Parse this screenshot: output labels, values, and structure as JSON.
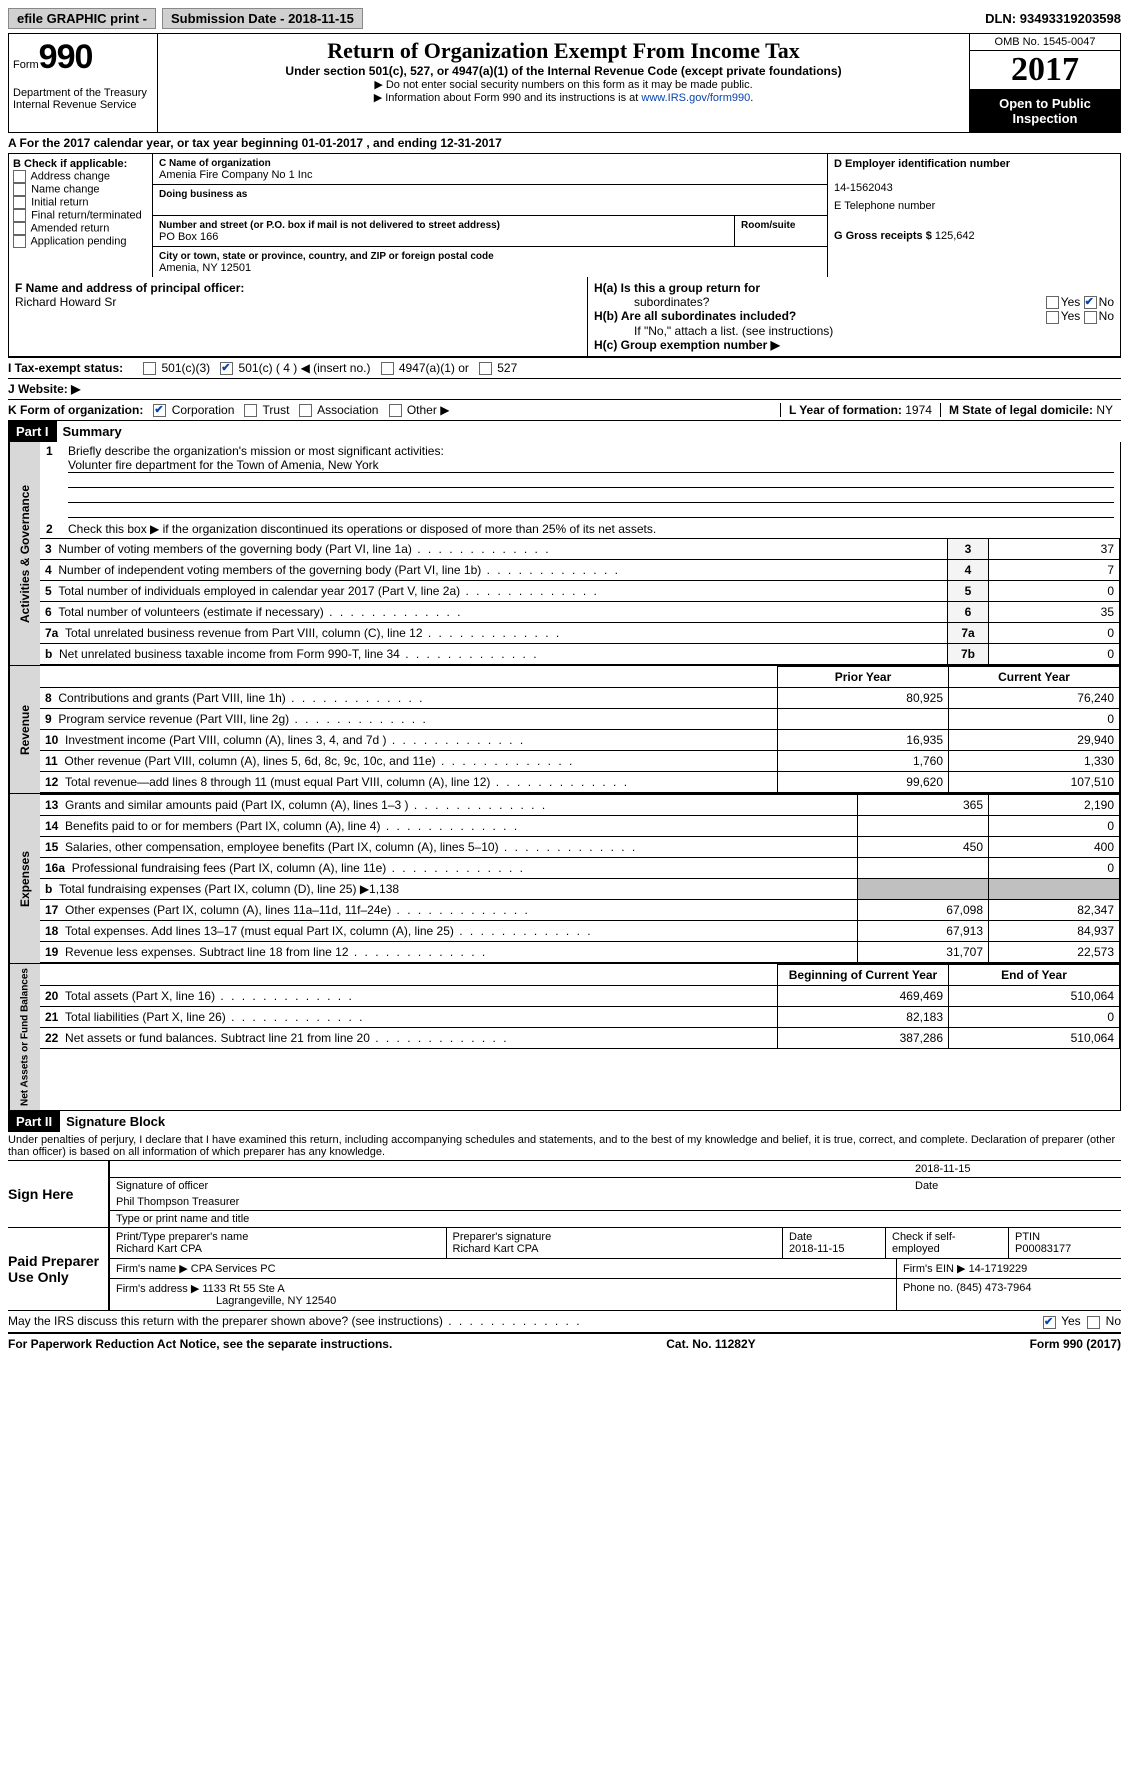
{
  "topbar": {
    "efile": "efile GRAPHIC print -",
    "subdate_lbl": "Submission Date -",
    "subdate": "2018-11-15",
    "dln_lbl": "DLN:",
    "dln": "93493319203598"
  },
  "header": {
    "form_lbl": "Form",
    "form_num": "990",
    "dept1": "Department of the Treasury",
    "dept2": "Internal Revenue Service",
    "title": "Return of Organization Exempt From Income Tax",
    "sub": "Under section 501(c), 527, or 4947(a)(1) of the Internal Revenue Code (except private foundations)",
    "note1": "▶ Do not enter social security numbers on this form as it may be made public.",
    "note2": "▶ Information about Form 990 and its instructions is at ",
    "link": "www.IRS.gov/form990",
    "omb": "OMB No. 1545-0047",
    "year": "2017",
    "open": "Open to Public Inspection"
  },
  "A": {
    "text": "A  For the 2017 calendar year, or tax year beginning 01-01-2017   , and ending 12-31-2017"
  },
  "B": {
    "lbl": "B Check if applicable:",
    "opts": [
      "Address change",
      "Name change",
      "Initial return",
      "Final return/terminated",
      "Amended return",
      "Application pending"
    ]
  },
  "C": {
    "name_lbl": "C Name of organization",
    "name": "Amenia Fire Company No 1 Inc",
    "dba_lbl": "Doing business as",
    "dba": "",
    "addr_lbl": "Number and street (or P.O. box if mail is not delivered to street address)",
    "room_lbl": "Room/suite",
    "addr": "PO Box 166",
    "city_lbl": "City or town, state or province, country, and ZIP or foreign postal code",
    "city": "Amenia, NY  12501"
  },
  "D": {
    "lbl": "D Employer identification number",
    "val": "14-1562043"
  },
  "E": {
    "lbl": "E Telephone number",
    "val": ""
  },
  "G": {
    "lbl": "G Gross receipts $",
    "val": "125,642"
  },
  "F": {
    "lbl": "F Name and address of principal officer:",
    "val": "Richard Howard Sr"
  },
  "H": {
    "a_lbl": "H(a)  Is this a group return for",
    "a_lbl2": "subordinates?",
    "a_yes": "Yes",
    "a_no": "No",
    "b_lbl": "H(b)  Are all subordinates included?",
    "b_note": "If \"No,\" attach a list. (see instructions)",
    "c_lbl": "H(c)  Group exemption number ▶"
  },
  "I": {
    "lbl": "I  Tax-exempt status:",
    "opts": [
      "501(c)(3)",
      "501(c) ( 4 ) ◀ (insert no.)",
      "4947(a)(1) or",
      "527"
    ]
  },
  "J": {
    "lbl": "J  Website: ▶"
  },
  "K": {
    "lbl": "K Form of organization:",
    "opts": [
      "Corporation",
      "Trust",
      "Association",
      "Other ▶"
    ]
  },
  "L": {
    "lbl": "L Year of formation:",
    "val": "1974"
  },
  "M": {
    "lbl": "M State of legal domicile:",
    "val": "NY"
  },
  "part1": {
    "hdr": "Part I",
    "title": "Summary",
    "l1": "Briefly describe the organization's mission or most significant activities:",
    "l1v": "Volunter fire department for the Town of Amenia, New York",
    "l2": "Check this box ▶        if the organization discontinued its operations or disposed of more than 25% of its net assets.",
    "rows_gov": [
      {
        "n": "3",
        "t": "Number of voting members of the governing body (Part VI, line 1a)",
        "r": "3",
        "v": "37"
      },
      {
        "n": "4",
        "t": "Number of independent voting members of the governing body (Part VI, line 1b)",
        "r": "4",
        "v": "7"
      },
      {
        "n": "5",
        "t": "Total number of individuals employed in calendar year 2017 (Part V, line 2a)",
        "r": "5",
        "v": "0"
      },
      {
        "n": "6",
        "t": "Total number of volunteers (estimate if necessary)",
        "r": "6",
        "v": "35"
      },
      {
        "n": "7a",
        "t": "Total unrelated business revenue from Part VIII, column (C), line 12",
        "r": "7a",
        "v": "0"
      },
      {
        "n": "b",
        "t": "Net unrelated business taxable income from Form 990-T, line 34",
        "r": "7b",
        "v": "0"
      }
    ],
    "col_prior": "Prior Year",
    "col_curr": "Current Year",
    "rows_rev": [
      {
        "n": "8",
        "t": "Contributions and grants (Part VIII, line 1h)",
        "p": "80,925",
        "c": "76,240"
      },
      {
        "n": "9",
        "t": "Program service revenue (Part VIII, line 2g)",
        "p": "",
        "c": "0"
      },
      {
        "n": "10",
        "t": "Investment income (Part VIII, column (A), lines 3, 4, and 7d )",
        "p": "16,935",
        "c": "29,940"
      },
      {
        "n": "11",
        "t": "Other revenue (Part VIII, column (A), lines 5, 6d, 8c, 9c, 10c, and 11e)",
        "p": "1,760",
        "c": "1,330"
      },
      {
        "n": "12",
        "t": "Total revenue—add lines 8 through 11 (must equal Part VIII, column (A), line 12)",
        "p": "99,620",
        "c": "107,510"
      }
    ],
    "rows_exp": [
      {
        "n": "13",
        "t": "Grants and similar amounts paid (Part IX, column (A), lines 1–3 )",
        "p": "365",
        "c": "2,190"
      },
      {
        "n": "14",
        "t": "Benefits paid to or for members (Part IX, column (A), line 4)",
        "p": "",
        "c": "0"
      },
      {
        "n": "15",
        "t": "Salaries, other compensation, employee benefits (Part IX, column (A), lines 5–10)",
        "p": "450",
        "c": "400"
      },
      {
        "n": "16a",
        "t": "Professional fundraising fees (Part IX, column (A), line 11e)",
        "p": "",
        "c": "0"
      },
      {
        "n": "b",
        "t": "Total fundraising expenses (Part IX, column (D), line 25) ▶1,138",
        "p": "SHADE",
        "c": "SHADE"
      },
      {
        "n": "17",
        "t": "Other expenses (Part IX, column (A), lines 11a–11d, 11f–24e)",
        "p": "67,098",
        "c": "82,347"
      },
      {
        "n": "18",
        "t": "Total expenses. Add lines 13–17 (must equal Part IX, column (A), line 25)",
        "p": "67,913",
        "c": "84,937"
      },
      {
        "n": "19",
        "t": "Revenue less expenses. Subtract line 18 from line 12",
        "p": "31,707",
        "c": "22,573"
      }
    ],
    "col_beg": "Beginning of Current Year",
    "col_end": "End of Year",
    "rows_net": [
      {
        "n": "20",
        "t": "Total assets (Part X, line 16)",
        "p": "469,469",
        "c": "510,064"
      },
      {
        "n": "21",
        "t": "Total liabilities (Part X, line 26)",
        "p": "82,183",
        "c": "0"
      },
      {
        "n": "22",
        "t": "Net assets or fund balances. Subtract line 21 from line 20",
        "p": "387,286",
        "c": "510,064"
      }
    ],
    "vlabels": {
      "gov": "Activities & Governance",
      "rev": "Revenue",
      "exp": "Expenses",
      "net": "Net Assets or Fund Balances"
    }
  },
  "part2": {
    "hdr": "Part II",
    "title": "Signature Block",
    "decl": "Under penalties of perjury, I declare that I have examined this return, including accompanying schedules and statements, and to the best of my knowledge and belief, it is true, correct, and complete. Declaration of preparer (other than officer) is based on all information of which preparer has any knowledge.",
    "sign_here": "Sign Here",
    "sig_date": "2018-11-15",
    "sig_lbl": "Signature of officer",
    "date_lbl": "Date",
    "name": "Phil Thompson Treasurer",
    "name_lbl": "Type or print name and title",
    "paid": "Paid Preparer Use Only",
    "p_name_lbl": "Print/Type preparer's name",
    "p_name": "Richard Kart CPA",
    "p_sig_lbl": "Preparer's signature",
    "p_sig": "Richard Kart CPA",
    "p_date_lbl": "Date",
    "p_date": "2018-11-15",
    "p_check": "Check        if self-employed",
    "ptin_lbl": "PTIN",
    "ptin": "P00083177",
    "firm_name_lbl": "Firm's name     ▶",
    "firm_name": "CPA Services PC",
    "firm_ein_lbl": "Firm's EIN ▶",
    "firm_ein": "14-1719229",
    "firm_addr_lbl": "Firm's address ▶",
    "firm_addr": "1133 Rt 55 Ste A",
    "firm_city": "Lagrangeville, NY  12540",
    "phone_lbl": "Phone no.",
    "phone": "(845) 473-7964",
    "discuss": "May the IRS discuss this return with the preparer shown above? (see instructions)",
    "yes": "Yes",
    "no": "No"
  },
  "footer": {
    "l": "For Paperwork Reduction Act Notice, see the separate instructions.",
    "m": "Cat. No. 11282Y",
    "r": "Form 990 (2017)"
  }
}
